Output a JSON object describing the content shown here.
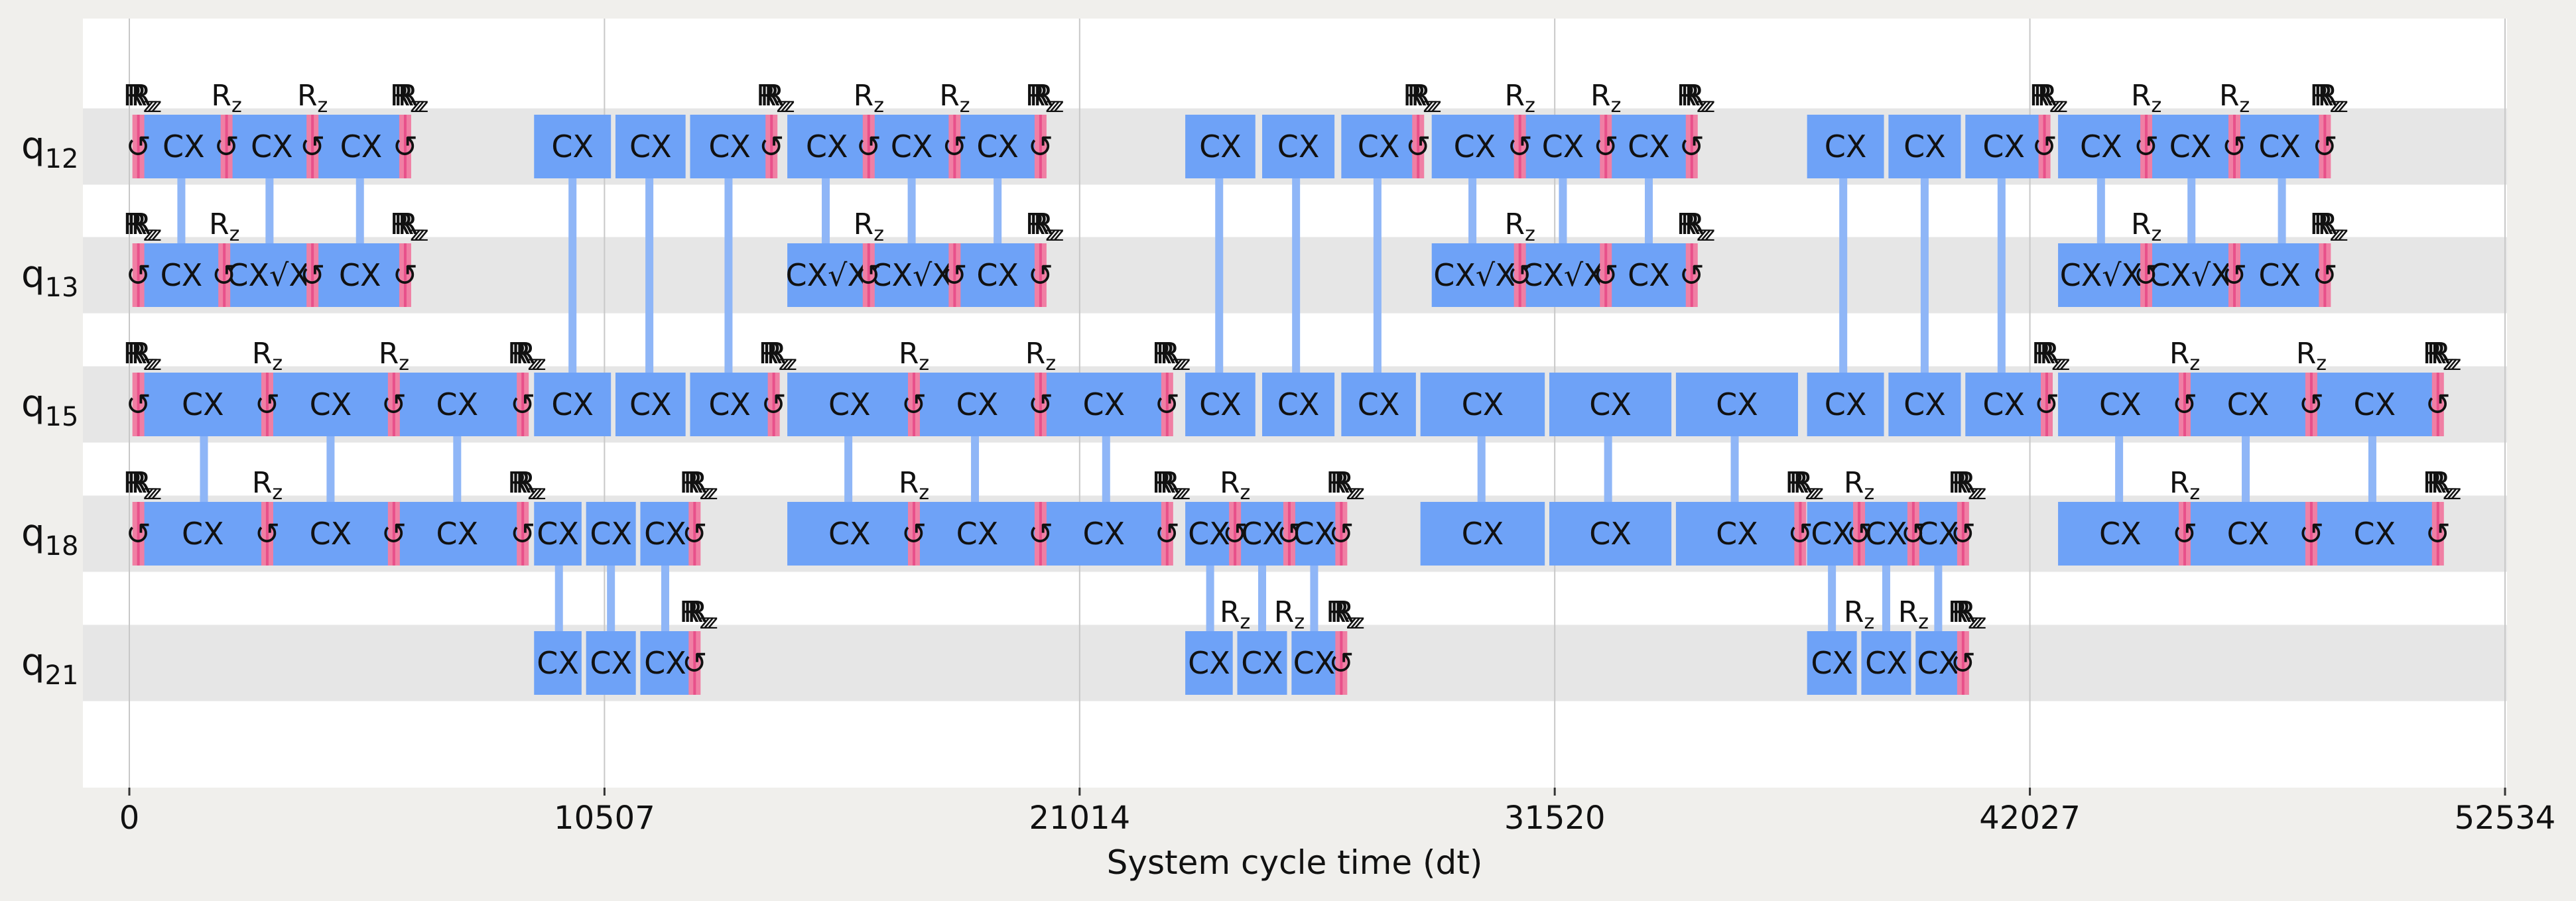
{
  "chart_data": {
    "type": "timeline",
    "xlabel": "System cycle time (dt)",
    "xlim": [
      0,
      52534
    ],
    "xticks": [
      0,
      10507,
      21014,
      31520,
      42027,
      52534
    ],
    "qubits": [
      "12",
      "13",
      "15",
      "18",
      "21"
    ],
    "qubit_prefix": "q",
    "colors": {
      "cx": "#6ea2f7",
      "link": "#8fb6f7",
      "single": "#f07fa4",
      "single_dark": "#e8508a",
      "band": "#e6e6e6",
      "plot_bg": "#ffffff",
      "grid": "#c8c8c8"
    },
    "gate_labels": {
      "cx": "CX",
      "sx": "√X",
      "rz": "R",
      "rz_sub": "z",
      "reset_glyph": "↺"
    },
    "blocks": [
      {
        "q": 0,
        "x0": 250,
        "x1": 2150,
        "label": "CX"
      },
      {
        "q": 0,
        "x0": 2250,
        "x1": 4050,
        "label": "CX"
      },
      {
        "q": 0,
        "x0": 4150,
        "x1": 6100,
        "label": "CX"
      },
      {
        "q": 0,
        "x0": 8950,
        "x1": 10650,
        "label": "CX"
      },
      {
        "q": 0,
        "x0": 10750,
        "x1": 12300,
        "label": "CX"
      },
      {
        "q": 0,
        "x0": 12400,
        "x1": 14150,
        "label": "CX"
      },
      {
        "q": 0,
        "x0": 14550,
        "x1": 16300,
        "label": "CX"
      },
      {
        "q": 0,
        "x0": 16400,
        "x1": 18200,
        "label": "CX"
      },
      {
        "q": 0,
        "x0": 18300,
        "x1": 20100,
        "label": "CX"
      },
      {
        "q": 0,
        "x0": 23350,
        "x1": 24900,
        "label": "CX"
      },
      {
        "q": 0,
        "x0": 25050,
        "x1": 26650,
        "label": "CX"
      },
      {
        "q": 0,
        "x0": 26800,
        "x1": 28450,
        "label": "CX"
      },
      {
        "q": 0,
        "x0": 28800,
        "x1": 30700,
        "label": "CX"
      },
      {
        "q": 0,
        "x0": 30800,
        "x1": 32600,
        "label": "CX"
      },
      {
        "q": 0,
        "x0": 32700,
        "x1": 34500,
        "label": "CX"
      },
      {
        "q": 0,
        "x0": 37100,
        "x1": 38800,
        "label": "CX"
      },
      {
        "q": 0,
        "x0": 38900,
        "x1": 40500,
        "label": "CX"
      },
      {
        "q": 0,
        "x0": 40600,
        "x1": 42300,
        "label": "CX"
      },
      {
        "q": 0,
        "x0": 42650,
        "x1": 44550,
        "label": "CX"
      },
      {
        "q": 0,
        "x0": 44650,
        "x1": 46500,
        "label": "CX"
      },
      {
        "q": 0,
        "x0": 46600,
        "x1": 48500,
        "label": "CX"
      },
      {
        "q": 1,
        "x0": 250,
        "x1": 2050,
        "label": "CX"
      },
      {
        "q": 1,
        "x0": 2150,
        "x1": 4000,
        "label": "CX√X"
      },
      {
        "q": 1,
        "x0": 4100,
        "x1": 6100,
        "label": "CX"
      },
      {
        "q": 1,
        "x0": 14550,
        "x1": 16300,
        "label": "CX√X"
      },
      {
        "q": 1,
        "x0": 16400,
        "x1": 18200,
        "label": "CX√X"
      },
      {
        "q": 1,
        "x0": 18300,
        "x1": 20100,
        "label": "CX"
      },
      {
        "q": 1,
        "x0": 28800,
        "x1": 30700,
        "label": "CX√X"
      },
      {
        "q": 1,
        "x0": 30800,
        "x1": 32600,
        "label": "CX√X"
      },
      {
        "q": 1,
        "x0": 32700,
        "x1": 34500,
        "label": "CX"
      },
      {
        "q": 1,
        "x0": 42650,
        "x1": 44550,
        "label": "CX√X"
      },
      {
        "q": 1,
        "x0": 44650,
        "x1": 46500,
        "label": "CX√X"
      },
      {
        "q": 1,
        "x0": 46600,
        "x1": 48500,
        "label": "CX"
      },
      {
        "q": 2,
        "x0": 250,
        "x1": 3000,
        "label": "CX"
      },
      {
        "q": 2,
        "x0": 3100,
        "x1": 5800,
        "label": "CX"
      },
      {
        "q": 2,
        "x0": 5900,
        "x1": 8600,
        "label": "CX"
      },
      {
        "q": 2,
        "x0": 8950,
        "x1": 10650,
        "label": "CX"
      },
      {
        "q": 2,
        "x0": 10750,
        "x1": 12300,
        "label": "CX"
      },
      {
        "q": 2,
        "x0": 12400,
        "x1": 14150,
        "label": "CX"
      },
      {
        "q": 2,
        "x0": 14550,
        "x1": 17300,
        "label": "CX"
      },
      {
        "q": 2,
        "x0": 17400,
        "x1": 20100,
        "label": "CX"
      },
      {
        "q": 2,
        "x0": 20200,
        "x1": 22900,
        "label": "CX"
      },
      {
        "q": 2,
        "x0": 23350,
        "x1": 24900,
        "label": "CX"
      },
      {
        "q": 2,
        "x0": 25050,
        "x1": 26650,
        "label": "CX"
      },
      {
        "q": 2,
        "x0": 26800,
        "x1": 28450,
        "label": "CX"
      },
      {
        "q": 2,
        "x0": 28550,
        "x1": 31300,
        "label": "CX"
      },
      {
        "q": 2,
        "x0": 31400,
        "x1": 34100,
        "label": "CX"
      },
      {
        "q": 2,
        "x0": 34200,
        "x1": 36900,
        "label": "CX"
      },
      {
        "q": 2,
        "x0": 37100,
        "x1": 38800,
        "label": "CX"
      },
      {
        "q": 2,
        "x0": 38900,
        "x1": 40500,
        "label": "CX"
      },
      {
        "q": 2,
        "x0": 40600,
        "x1": 42300,
        "label": "CX"
      },
      {
        "q": 2,
        "x0": 42650,
        "x1": 45400,
        "label": "CX"
      },
      {
        "q": 2,
        "x0": 45500,
        "x1": 48200,
        "label": "CX"
      },
      {
        "q": 2,
        "x0": 48300,
        "x1": 51000,
        "label": "CX"
      },
      {
        "q": 3,
        "x0": 250,
        "x1": 3000,
        "label": "CX"
      },
      {
        "q": 3,
        "x0": 3100,
        "x1": 5800,
        "label": "CX"
      },
      {
        "q": 3,
        "x0": 5900,
        "x1": 8600,
        "label": "CX"
      },
      {
        "q": 3,
        "x0": 8950,
        "x1": 10000,
        "label": "CX"
      },
      {
        "q": 3,
        "x0": 10100,
        "x1": 11200,
        "label": "CX"
      },
      {
        "q": 3,
        "x0": 11300,
        "x1": 12400,
        "label": "CX"
      },
      {
        "q": 3,
        "x0": 14550,
        "x1": 17300,
        "label": "CX"
      },
      {
        "q": 3,
        "x0": 17400,
        "x1": 20100,
        "label": "CX"
      },
      {
        "q": 3,
        "x0": 20200,
        "x1": 22900,
        "label": "CX"
      },
      {
        "q": 3,
        "x0": 23350,
        "x1": 24400,
        "label": "CX"
      },
      {
        "q": 3,
        "x0": 24500,
        "x1": 25600,
        "label": "CX"
      },
      {
        "q": 3,
        "x0": 25700,
        "x1": 26700,
        "label": "CX"
      },
      {
        "q": 3,
        "x0": 28550,
        "x1": 31300,
        "label": "CX"
      },
      {
        "q": 3,
        "x0": 31400,
        "x1": 34100,
        "label": "CX"
      },
      {
        "q": 3,
        "x0": 34200,
        "x1": 36900,
        "label": "CX"
      },
      {
        "q": 3,
        "x0": 37100,
        "x1": 38200,
        "label": "CX"
      },
      {
        "q": 3,
        "x0": 38300,
        "x1": 39400,
        "label": "CX"
      },
      {
        "q": 3,
        "x0": 39500,
        "x1": 40500,
        "label": "CX"
      },
      {
        "q": 3,
        "x0": 42650,
        "x1": 45400,
        "label": "CX"
      },
      {
        "q": 3,
        "x0": 45500,
        "x1": 48200,
        "label": "CX"
      },
      {
        "q": 3,
        "x0": 48300,
        "x1": 51000,
        "label": "CX"
      },
      {
        "q": 4,
        "x0": 8950,
        "x1": 10000,
        "label": "CX"
      },
      {
        "q": 4,
        "x0": 10100,
        "x1": 11200,
        "label": "CX"
      },
      {
        "q": 4,
        "x0": 11300,
        "x1": 12400,
        "label": "CX"
      },
      {
        "q": 4,
        "x0": 23350,
        "x1": 24400,
        "label": "CX"
      },
      {
        "q": 4,
        "x0": 24500,
        "x1": 25600,
        "label": "CX"
      },
      {
        "q": 4,
        "x0": 25700,
        "x1": 26700,
        "label": "CX"
      },
      {
        "q": 4,
        "x0": 37100,
        "x1": 38200,
        "label": "CX"
      },
      {
        "q": 4,
        "x0": 38300,
        "x1": 39400,
        "label": "CX"
      },
      {
        "q": 4,
        "x0": 39500,
        "x1": 40500,
        "label": "CX"
      }
    ],
    "links": [
      {
        "x": 1150,
        "a": 0,
        "b": 1
      },
      {
        "x": 3100,
        "a": 0,
        "b": 1
      },
      {
        "x": 5100,
        "a": 0,
        "b": 1
      },
      {
        "x": 9800,
        "a": 0,
        "b": 2
      },
      {
        "x": 11500,
        "a": 0,
        "b": 2
      },
      {
        "x": 13250,
        "a": 0,
        "b": 2
      },
      {
        "x": 15400,
        "a": 0,
        "b": 1
      },
      {
        "x": 17300,
        "a": 0,
        "b": 1
      },
      {
        "x": 19200,
        "a": 0,
        "b": 1
      },
      {
        "x": 24100,
        "a": 0,
        "b": 2
      },
      {
        "x": 25800,
        "a": 0,
        "b": 2
      },
      {
        "x": 27600,
        "a": 0,
        "b": 2
      },
      {
        "x": 29700,
        "a": 0,
        "b": 1
      },
      {
        "x": 31700,
        "a": 0,
        "b": 1
      },
      {
        "x": 33600,
        "a": 0,
        "b": 1
      },
      {
        "x": 37900,
        "a": 0,
        "b": 2
      },
      {
        "x": 39700,
        "a": 0,
        "b": 2
      },
      {
        "x": 41400,
        "a": 0,
        "b": 2
      },
      {
        "x": 43600,
        "a": 0,
        "b": 1
      },
      {
        "x": 45600,
        "a": 0,
        "b": 1
      },
      {
        "x": 47600,
        "a": 0,
        "b": 1
      },
      {
        "x": 1650,
        "a": 2,
        "b": 3
      },
      {
        "x": 4450,
        "a": 2,
        "b": 3
      },
      {
        "x": 7250,
        "a": 2,
        "b": 3
      },
      {
        "x": 15900,
        "a": 2,
        "b": 3
      },
      {
        "x": 18700,
        "a": 2,
        "b": 3
      },
      {
        "x": 21600,
        "a": 2,
        "b": 3
      },
      {
        "x": 29900,
        "a": 2,
        "b": 3
      },
      {
        "x": 32700,
        "a": 2,
        "b": 3
      },
      {
        "x": 35500,
        "a": 2,
        "b": 3
      },
      {
        "x": 44000,
        "a": 2,
        "b": 3
      },
      {
        "x": 46800,
        "a": 2,
        "b": 3
      },
      {
        "x": 49600,
        "a": 2,
        "b": 3
      },
      {
        "x": 9500,
        "a": 3,
        "b": 4
      },
      {
        "x": 10650,
        "a": 3,
        "b": 4
      },
      {
        "x": 11850,
        "a": 3,
        "b": 4
      },
      {
        "x": 23900,
        "a": 3,
        "b": 4
      },
      {
        "x": 25050,
        "a": 3,
        "b": 4
      },
      {
        "x": 26200,
        "a": 3,
        "b": 4
      },
      {
        "x": 37650,
        "a": 3,
        "b": 4
      },
      {
        "x": 38850,
        "a": 3,
        "b": 4
      },
      {
        "x": 40000,
        "a": 3,
        "b": 4
      }
    ],
    "single_gates": [
      {
        "q": 0,
        "x": 200
      },
      {
        "q": 0,
        "x": 2150
      },
      {
        "q": 0,
        "x": 4050
      },
      {
        "q": 0,
        "x": 6100
      },
      {
        "q": 0,
        "x": 14200
      },
      {
        "q": 0,
        "x": 16350
      },
      {
        "q": 0,
        "x": 18250
      },
      {
        "q": 0,
        "x": 20150
      },
      {
        "q": 0,
        "x": 28500
      },
      {
        "q": 0,
        "x": 30750
      },
      {
        "q": 0,
        "x": 32650
      },
      {
        "q": 0,
        "x": 34550
      },
      {
        "q": 0,
        "x": 42350
      },
      {
        "q": 0,
        "x": 44600
      },
      {
        "q": 0,
        "x": 46550
      },
      {
        "q": 0,
        "x": 48550
      },
      {
        "q": 1,
        "x": 200
      },
      {
        "q": 1,
        "x": 2100
      },
      {
        "q": 1,
        "x": 4050
      },
      {
        "q": 1,
        "x": 6100
      },
      {
        "q": 1,
        "x": 16350
      },
      {
        "q": 1,
        "x": 18250
      },
      {
        "q": 1,
        "x": 20150
      },
      {
        "q": 1,
        "x": 30750
      },
      {
        "q": 1,
        "x": 32650
      },
      {
        "q": 1,
        "x": 34550
      },
      {
        "q": 1,
        "x": 44600
      },
      {
        "q": 1,
        "x": 46550
      },
      {
        "q": 1,
        "x": 48550
      },
      {
        "q": 2,
        "x": 200
      },
      {
        "q": 2,
        "x": 3050
      },
      {
        "q": 2,
        "x": 5850
      },
      {
        "q": 2,
        "x": 8700
      },
      {
        "q": 2,
        "x": 14250
      },
      {
        "q": 2,
        "x": 17350
      },
      {
        "q": 2,
        "x": 20150
      },
      {
        "q": 2,
        "x": 22950
      },
      {
        "q": 2,
        "x": 42400
      },
      {
        "q": 2,
        "x": 45450
      },
      {
        "q": 2,
        "x": 48250
      },
      {
        "q": 2,
        "x": 51050
      },
      {
        "q": 3,
        "x": 200
      },
      {
        "q": 3,
        "x": 3050
      },
      {
        "q": 3,
        "x": 5850
      },
      {
        "q": 3,
        "x": 8700
      },
      {
        "q": 3,
        "x": 12500
      },
      {
        "q": 3,
        "x": 17350
      },
      {
        "q": 3,
        "x": 20150
      },
      {
        "q": 3,
        "x": 22950
      },
      {
        "q": 3,
        "x": 24450
      },
      {
        "q": 3,
        "x": 25650
      },
      {
        "q": 3,
        "x": 26800
      },
      {
        "q": 3,
        "x": 36950
      },
      {
        "q": 3,
        "x": 38250
      },
      {
        "q": 3,
        "x": 39450
      },
      {
        "q": 3,
        "x": 40550
      },
      {
        "q": 3,
        "x": 45450
      },
      {
        "q": 3,
        "x": 48250
      },
      {
        "q": 3,
        "x": 51050
      },
      {
        "q": 4,
        "x": 12500
      },
      {
        "q": 4,
        "x": 26800
      },
      {
        "q": 4,
        "x": 40550
      }
    ],
    "rz_labels": [
      {
        "q": 0,
        "x": 200,
        "stack": true
      },
      {
        "q": 0,
        "x": 2150
      },
      {
        "q": 0,
        "x": 4050
      },
      {
        "q": 0,
        "x": 6100,
        "stack": true
      },
      {
        "q": 0,
        "x": 14200,
        "stack": true
      },
      {
        "q": 0,
        "x": 16350
      },
      {
        "q": 0,
        "x": 18250
      },
      {
        "q": 0,
        "x": 20150,
        "stack": true
      },
      {
        "q": 0,
        "x": 28500,
        "stack": true
      },
      {
        "q": 0,
        "x": 30750
      },
      {
        "q": 0,
        "x": 32650
      },
      {
        "q": 0,
        "x": 34550,
        "stack": true
      },
      {
        "q": 0,
        "x": 42350,
        "stack": true
      },
      {
        "q": 0,
        "x": 44600
      },
      {
        "q": 0,
        "x": 46550
      },
      {
        "q": 0,
        "x": 48550,
        "stack": true
      },
      {
        "q": 1,
        "x": 200,
        "stack": true
      },
      {
        "q": 1,
        "x": 2100
      },
      {
        "q": 1,
        "x": 6100,
        "stack": true
      },
      {
        "q": 1,
        "x": 16350
      },
      {
        "q": 1,
        "x": 20150,
        "stack": true
      },
      {
        "q": 1,
        "x": 30750
      },
      {
        "q": 1,
        "x": 34550,
        "stack": true
      },
      {
        "q": 1,
        "x": 44600
      },
      {
        "q": 1,
        "x": 48550,
        "stack": true
      },
      {
        "q": 2,
        "x": 200,
        "stack": true
      },
      {
        "q": 2,
        "x": 3050
      },
      {
        "q": 2,
        "x": 5850
      },
      {
        "q": 2,
        "x": 8700,
        "stack": true
      },
      {
        "q": 2,
        "x": 14250,
        "stack": true
      },
      {
        "q": 2,
        "x": 17350
      },
      {
        "q": 2,
        "x": 20150
      },
      {
        "q": 2,
        "x": 22950,
        "stack": true
      },
      {
        "q": 2,
        "x": 42400,
        "stack": true
      },
      {
        "q": 2,
        "x": 45450
      },
      {
        "q": 2,
        "x": 48250
      },
      {
        "q": 2,
        "x": 51050,
        "stack": true
      },
      {
        "q": 3,
        "x": 200,
        "stack": true
      },
      {
        "q": 3,
        "x": 3050
      },
      {
        "q": 3,
        "x": 8700,
        "stack": true
      },
      {
        "q": 3,
        "x": 12500,
        "stack": true
      },
      {
        "q": 3,
        "x": 17350
      },
      {
        "q": 3,
        "x": 22950,
        "stack": true
      },
      {
        "q": 3,
        "x": 24450
      },
      {
        "q": 3,
        "x": 26800,
        "stack": true
      },
      {
        "q": 3,
        "x": 36950,
        "stack": true
      },
      {
        "q": 3,
        "x": 38250
      },
      {
        "q": 3,
        "x": 40550,
        "stack": true
      },
      {
        "q": 3,
        "x": 45450
      },
      {
        "q": 3,
        "x": 51050,
        "stack": true
      },
      {
        "q": 4,
        "x": 12500,
        "stack": true
      },
      {
        "q": 4,
        "x": 24450
      },
      {
        "q": 4,
        "x": 25650
      },
      {
        "q": 4,
        "x": 26800,
        "stack": true
      },
      {
        "q": 4,
        "x": 38250
      },
      {
        "q": 4,
        "x": 39450
      },
      {
        "q": 4,
        "x": 40550,
        "stack": true
      }
    ]
  }
}
